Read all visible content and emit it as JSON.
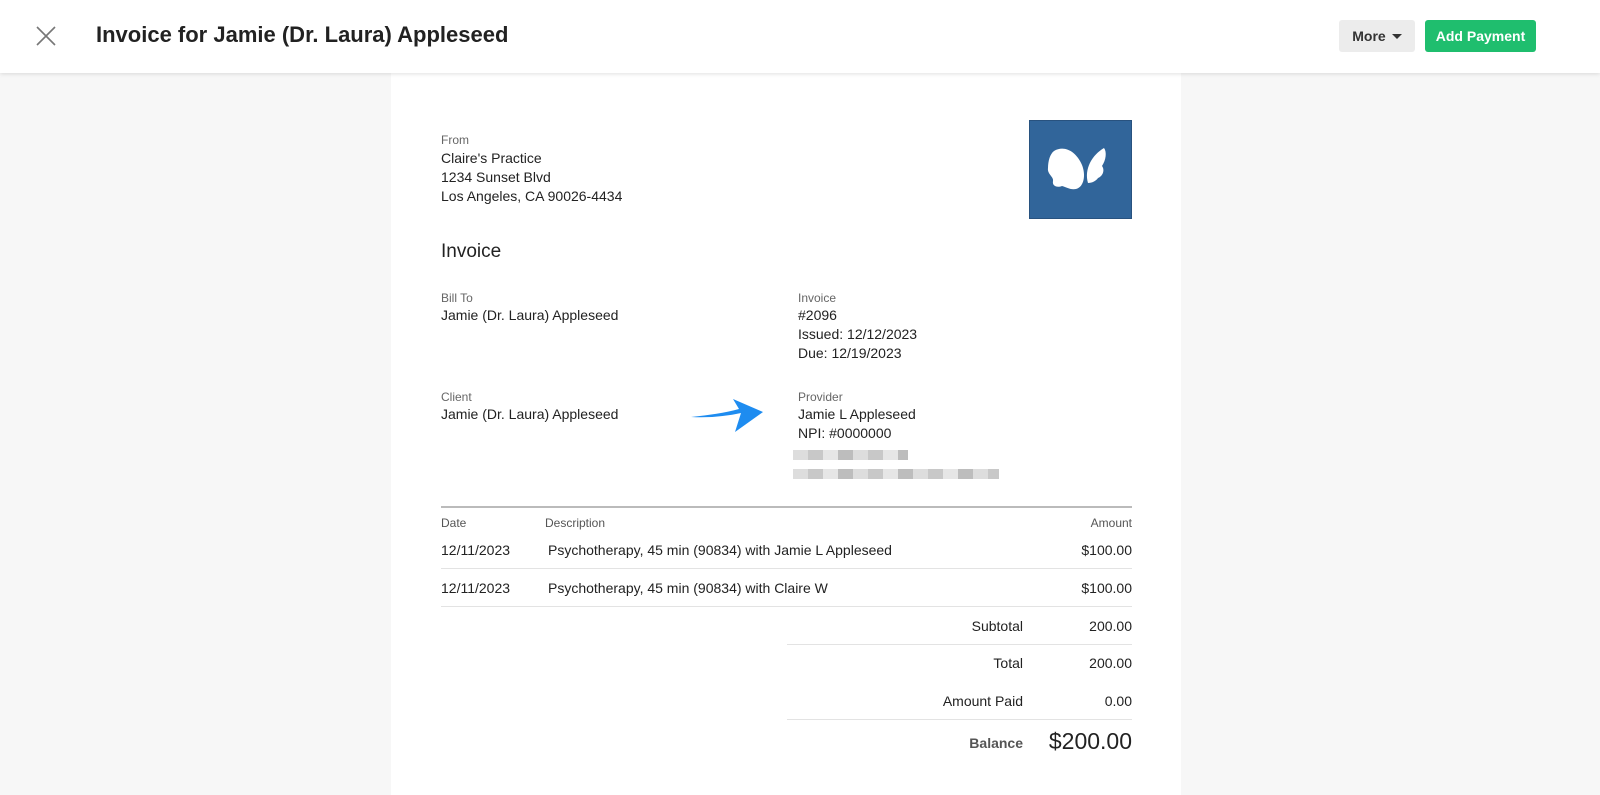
{
  "header": {
    "title": "Invoice for Jamie (Dr. Laura) Appleseed",
    "more_label": "More",
    "add_payment_label": "Add Payment",
    "accent": "#1fbe6e"
  },
  "invoice": {
    "from_label": "From",
    "from_lines": [
      "Claire's Practice",
      "1234 Sunset Blvd",
      "Los Angeles, CA 90026-4434"
    ],
    "heading": "Invoice",
    "bill_to_label": "Bill To",
    "bill_to": "Jamie (Dr. Laura) Appleseed",
    "invoice_label": "Invoice",
    "number": "#2096",
    "issued": "Issued: 12/12/2023",
    "due": "Due: 12/19/2023",
    "client_label": "Client",
    "client": "Jamie (Dr. Laura) Appleseed",
    "provider_label": "Provider",
    "provider_name": "Jamie L Appleseed",
    "provider_npi": "NPI: #0000000",
    "columns": {
      "date": "Date",
      "description": "Description",
      "amount": "Amount"
    },
    "rows": [
      {
        "date": "12/11/2023",
        "description": "Psychotherapy, 45 min (90834) with Jamie L Appleseed",
        "amount": "$100.00"
      },
      {
        "date": "12/11/2023",
        "description": "Psychotherapy, 45 min (90834) with Claire W",
        "amount": "$100.00"
      }
    ],
    "subtotal_label": "Subtotal",
    "subtotal": "200.00",
    "total_label": "Total",
    "total": "200.00",
    "paid_label": "Amount Paid",
    "paid": "0.00",
    "balance_label": "Balance",
    "balance": "$200.00"
  }
}
